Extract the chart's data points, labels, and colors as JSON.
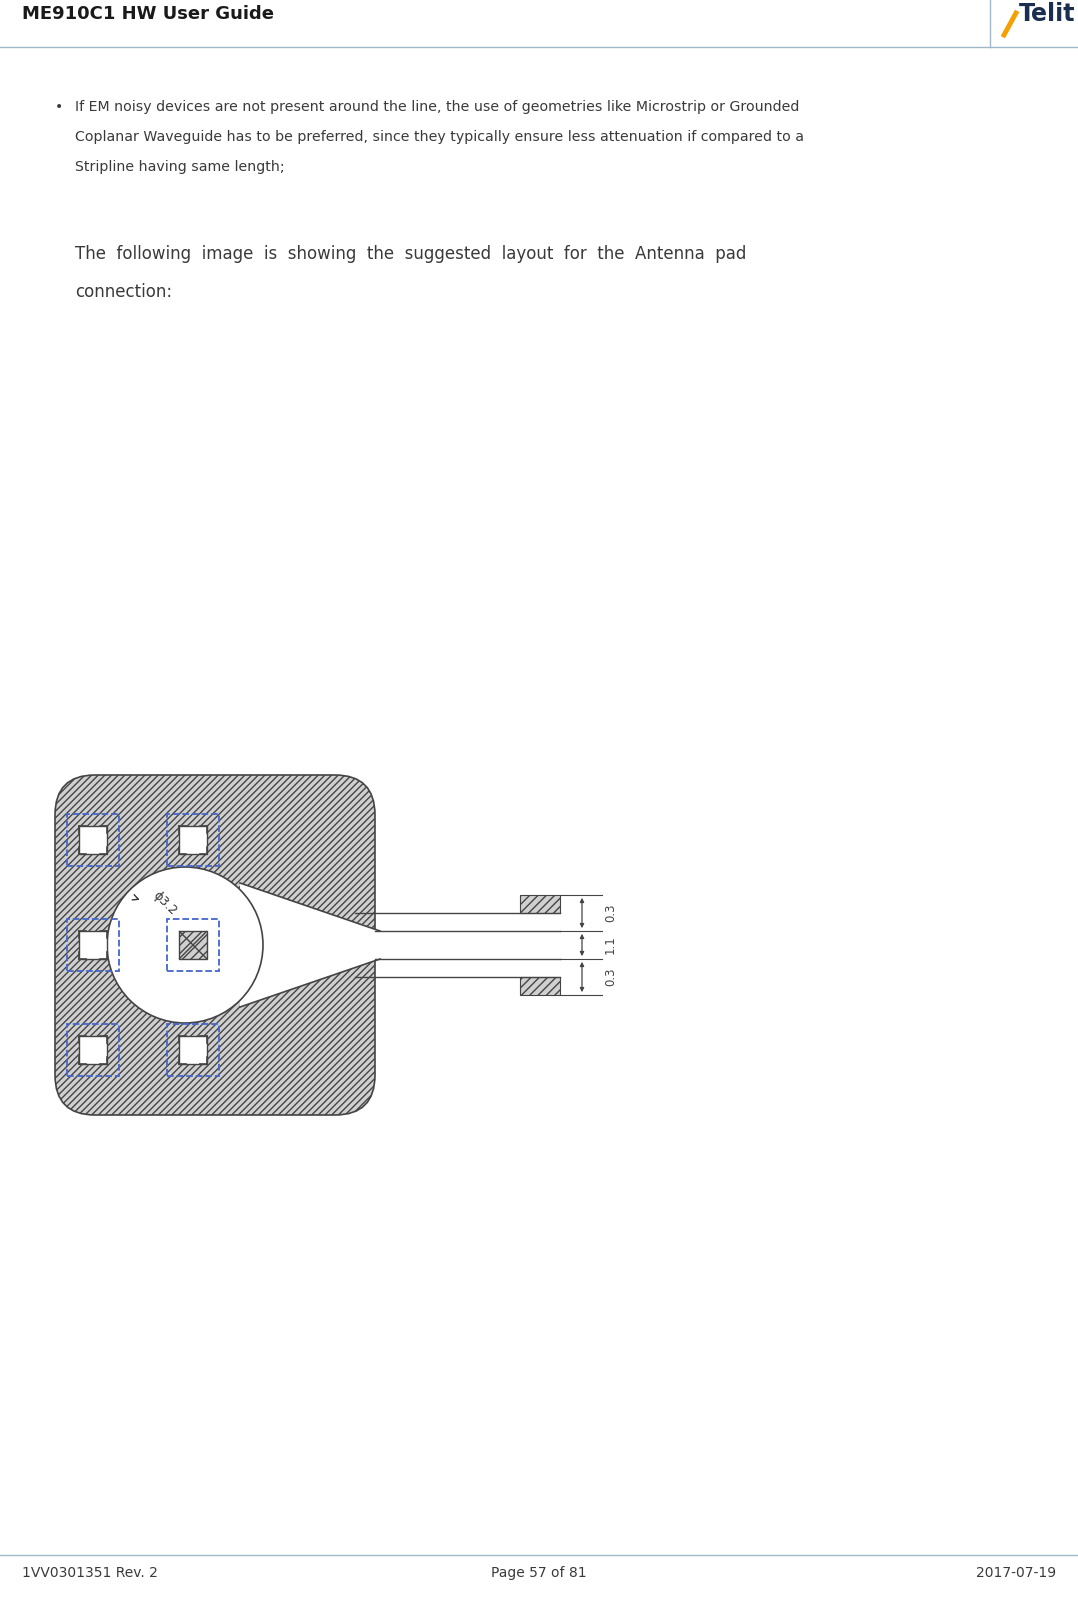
{
  "title": "ME910C1 HW User Guide",
  "footer_left": "1VV0301351 Rev. 2",
  "footer_center": "Page 57 of 81",
  "footer_right": "2017-07-19",
  "header_line_color": "#a0b8c8",
  "footer_line_color": "#a0b8c8",
  "telit_text": "Telit",
  "telit_color": "#1a2e50",
  "telit_slash_color": "#f5a000",
  "bullet_line1": "If EM noisy devices are not present around the line, the use of geometries like Microstrip or Grounded",
  "bullet_line2": "Coplanar Waveguide has to be preferred, since they typically ensure less attenuation if compared to a",
  "bullet_line3": "Stripline having same length;",
  "follow_line1": "The  following  image  is  showing  the  suggested  layout  for  the  Antenna  pad",
  "follow_line2": "connection:",
  "bg_color": "#ffffff",
  "text_color": "#3a3a3a",
  "hatch_color": "#bbbbbb",
  "line_color": "#444444",
  "pad_blue": "#4444aa",
  "dim_label_0": "0.3",
  "dim_label_1": "1.1",
  "dim_label_2": "0.3",
  "circle_label": "ϕ3.2"
}
